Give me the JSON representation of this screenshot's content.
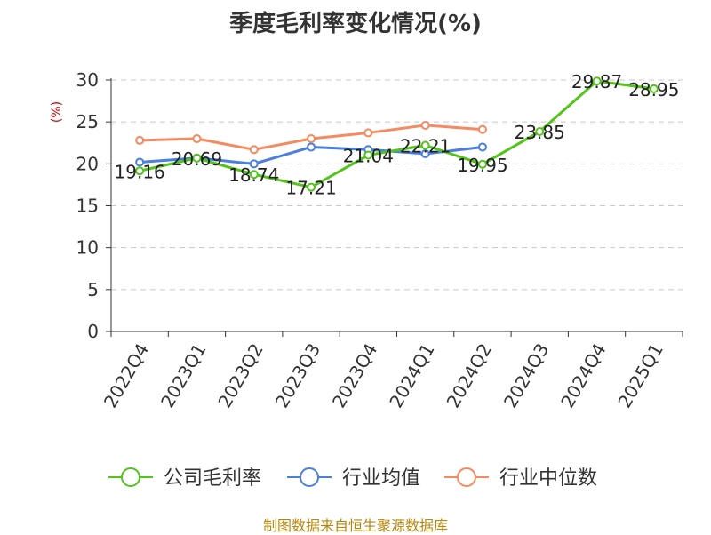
{
  "chart_data": {
    "type": "line",
    "title": "季度毛利率变化情况(%)",
    "ylabel": "(%)",
    "xlabel": "",
    "categories": [
      "2022Q4",
      "2023Q1",
      "2023Q2",
      "2023Q3",
      "2023Q4",
      "2024Q1",
      "2024Q2",
      "2024Q3",
      "2024Q4",
      "2025Q1"
    ],
    "ylim": [
      0,
      30
    ],
    "yticks": [
      0,
      5,
      10,
      15,
      20,
      25,
      30
    ],
    "grid": true,
    "legend_position": "bottom",
    "series": [
      {
        "name": "公司毛利率",
        "color": "#52c41a",
        "values": [
          19.16,
          20.69,
          18.74,
          17.21,
          21.04,
          22.21,
          19.95,
          23.85,
          29.87,
          28.95
        ],
        "labels": [
          "19.16",
          "20.69",
          "18.74",
          "17.21",
          "21.04",
          "22.21",
          "19.95",
          "23.85",
          "29.87",
          "28.95"
        ]
      },
      {
        "name": "行业均值",
        "color": "#4a7fe0",
        "values": [
          20.2,
          20.7,
          20.0,
          22.0,
          21.7,
          21.2,
          22.0,
          null,
          null,
          null
        ]
      },
      {
        "name": "行业中位数",
        "color": "#f5895f",
        "values": [
          22.8,
          23.0,
          21.7,
          23.0,
          23.7,
          24.6,
          24.1,
          null,
          null,
          null
        ]
      }
    ]
  },
  "source": "制图数据来自恒生聚源数据库"
}
